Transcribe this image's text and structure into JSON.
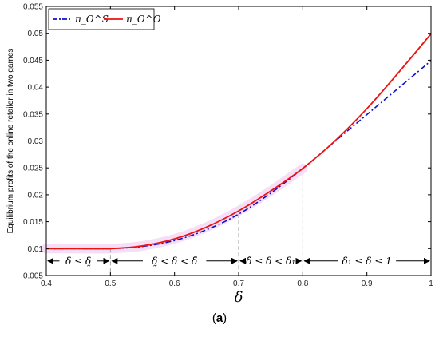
{
  "chart_data": {
    "type": "line",
    "title": "",
    "xlabel": "δ",
    "ylabel": "Equilibrium profits of the online retailer in two games",
    "xlim": [
      0.4,
      1.0
    ],
    "ylim": [
      0.005,
      0.055
    ],
    "x_ticks": [
      "0.4",
      "0.5",
      "0.6",
      "0.7",
      "0.8",
      "0.9",
      "1"
    ],
    "y_ticks": [
      "0.005",
      "0.01",
      "0.015",
      "0.02",
      "0.025",
      "0.03",
      "0.035",
      "0.04",
      "0.045",
      "0.05",
      "0.055"
    ],
    "x": [
      0.4,
      0.45,
      0.5,
      0.55,
      0.6,
      0.65,
      0.7,
      0.75,
      0.8,
      0.85,
      0.9,
      0.95,
      1.0
    ],
    "series": [
      {
        "name": "π_O^S",
        "color": "#1010cc",
        "style": "dash-dot",
        "values": [
          0.01,
          0.01,
          0.01,
          0.0104,
          0.0115,
          0.0135,
          0.0164,
          0.0203,
          0.0249,
          0.0299,
          0.0349,
          0.0399,
          0.0449
        ]
      },
      {
        "name": "π_O^O",
        "color": "#ee1111",
        "style": "solid",
        "values": [
          0.01,
          0.01,
          0.01,
          0.0105,
          0.0118,
          0.014,
          0.017,
          0.0207,
          0.0249,
          0.03,
          0.036,
          0.0428,
          0.0499
        ]
      }
    ],
    "legend_position": "top-left",
    "grid": false,
    "vlines": [
      0.5,
      0.7,
      0.8
    ],
    "regions": [
      {
        "from": 0.4,
        "to": 0.5,
        "label": "δ ≤ δ̰"
      },
      {
        "from": 0.5,
        "to": 0.7,
        "label": "δ̰ < δ < δ̃"
      },
      {
        "from": 0.7,
        "to": 0.8,
        "label": "δ̃ ≤ δ < δ₁"
      },
      {
        "from": 0.8,
        "to": 1.0,
        "label": "δ₁ ≤ δ ≤ 1"
      }
    ],
    "caption": "(a)",
    "region_y": 0.0077
  },
  "caption": {
    "open": "(",
    "letter": "a",
    "close": ")"
  },
  "colors": {
    "series_s": "#1010cc",
    "series_o": "#ee1111",
    "axis": "#000000",
    "highlight": "#f4d9f4"
  }
}
